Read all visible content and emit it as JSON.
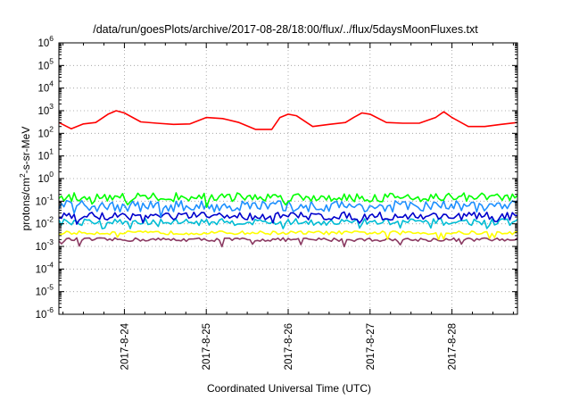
{
  "chart_data": {
    "type": "line",
    "title": "/data/run/goesPlots/archive/2017-08-28/18:00/flux/../flux/5daysMoonFluxes.txt",
    "xlabel": "Coordinated Universal Time (UTC)",
    "ylabel": "protons/cm2-s-sr-MeV",
    "yscale": "log",
    "ylim_exponents": [
      -6,
      6
    ],
    "ytick_exponents": [
      -6,
      -5,
      -4,
      -3,
      -2,
      -1,
      0,
      1,
      2,
      3,
      4,
      5,
      6
    ],
    "xlim_days": [
      23.2,
      28.8
    ],
    "xticks": [
      {
        "x": 24,
        "label": "2017-8-24"
      },
      {
        "x": 25,
        "label": "2017-8-25"
      },
      {
        "x": 26,
        "label": "2017-8-26"
      },
      {
        "x": 27,
        "label": "2017-8-27"
      },
      {
        "x": 28,
        "label": "2017-8-28"
      }
    ],
    "grid": true,
    "series": [
      {
        "color": "#ff0000",
        "x": [
          23.2,
          23.35,
          23.5,
          23.65,
          23.8,
          23.9,
          24.0,
          24.2,
          24.4,
          24.6,
          24.8,
          25.0,
          25.2,
          25.4,
          25.6,
          25.8,
          25.9,
          26.0,
          26.1,
          26.3,
          26.5,
          26.7,
          26.8,
          26.9,
          27.0,
          27.2,
          27.4,
          27.6,
          27.8,
          27.9,
          28.0,
          28.2,
          28.4,
          28.6,
          28.8
        ],
        "y": [
          300,
          160,
          260,
          300,
          700,
          1000,
          800,
          320,
          280,
          250,
          260,
          500,
          450,
          300,
          150,
          150,
          500,
          700,
          600,
          200,
          250,
          300,
          500,
          800,
          700,
          300,
          280,
          280,
          500,
          900,
          500,
          200,
          200,
          250,
          300
        ]
      },
      {
        "color": "#00ff00",
        "baseline": 0.15,
        "noise": 0.2
      },
      {
        "color": "#1e90ff",
        "baseline": 0.06,
        "noise": 0.25
      },
      {
        "color": "#0000cc",
        "baseline": 0.022,
        "noise": 0.18
      },
      {
        "color": "#00bcd4",
        "baseline": 0.012,
        "noise": 0.15
      },
      {
        "color": "#ffff00",
        "baseline": 0.004,
        "noise": 0.08
      },
      {
        "color": "#8b3a62",
        "baseline": 0.002,
        "noise": 0.08
      }
    ]
  }
}
